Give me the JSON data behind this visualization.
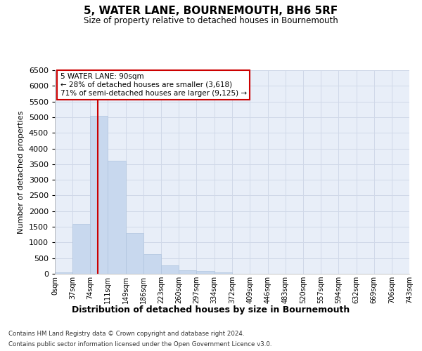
{
  "title": "5, WATER LANE, BOURNEMOUTH, BH6 5RF",
  "subtitle": "Size of property relative to detached houses in Bournemouth",
  "xlabel": "Distribution of detached houses by size in Bournemouth",
  "ylabel": "Number of detached properties",
  "footer_line1": "Contains HM Land Registry data © Crown copyright and database right 2024.",
  "footer_line2": "Contains public sector information licensed under the Open Government Licence v3.0.",
  "property_size": 90,
  "property_label": "5 WATER LANE: 90sqm",
  "annotation_line1": "← 28% of detached houses are smaller (3,618)",
  "annotation_line2": "71% of semi-detached houses are larger (9,125) →",
  "bar_color": "#c8d8ee",
  "bar_edge_color": "#b0c4de",
  "red_line_color": "#cc0000",
  "annotation_box_color": "#ffffff",
  "annotation_box_edge": "#cc0000",
  "grid_color": "#d0d8e8",
  "background_color": "#e8eef8",
  "bins": [
    0,
    37,
    74,
    111,
    149,
    186,
    223,
    260,
    297,
    334,
    372,
    409,
    446,
    483,
    520,
    557,
    594,
    632,
    669,
    706,
    743
  ],
  "bin_labels": [
    "0sqm",
    "37sqm",
    "74sqm",
    "111sqm",
    "149sqm",
    "186sqm",
    "223sqm",
    "260sqm",
    "297sqm",
    "334sqm",
    "372sqm",
    "409sqm",
    "446sqm",
    "483sqm",
    "520sqm",
    "557sqm",
    "594sqm",
    "632sqm",
    "669sqm",
    "706sqm",
    "743sqm"
  ],
  "values": [
    50,
    1600,
    5050,
    3600,
    1300,
    620,
    270,
    120,
    80,
    50,
    0,
    0,
    0,
    0,
    0,
    0,
    0,
    0,
    0,
    0
  ],
  "ylim": [
    0,
    6500
  ],
  "yticks": [
    0,
    500,
    1000,
    1500,
    2000,
    2500,
    3000,
    3500,
    4000,
    4500,
    5000,
    5500,
    6000,
    6500
  ]
}
